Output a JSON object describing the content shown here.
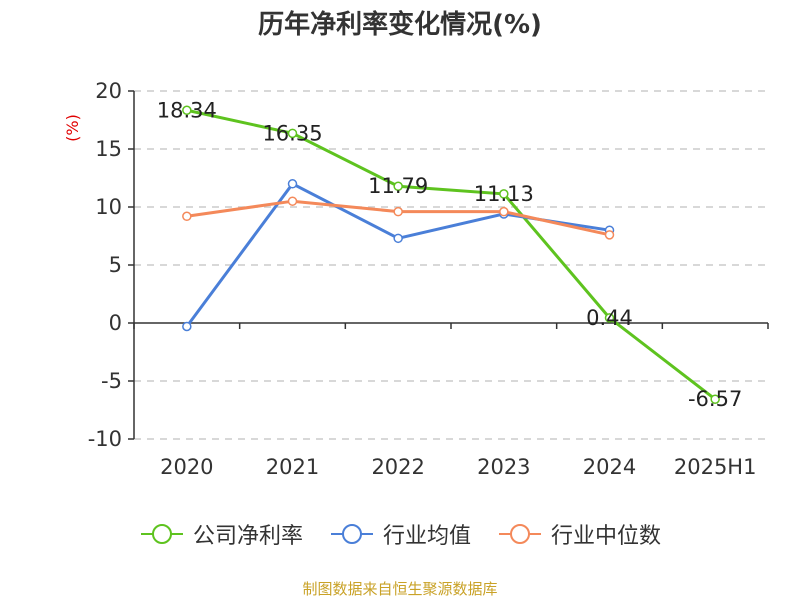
{
  "chart_data": {
    "type": "line",
    "title": "历年净利率变化情况(%)",
    "ylabel": "(%)",
    "categories": [
      "2020",
      "2021",
      "2022",
      "2023",
      "2024",
      "2025H1"
    ],
    "ylim": [
      -10,
      20
    ],
    "yticks": [
      "20",
      "15",
      "10",
      "5",
      "0",
      "-5",
      "-10"
    ],
    "grid": true,
    "legend_position": "bottom",
    "series": [
      {
        "name": "公司净利率",
        "color": "#5ec31f",
        "values": [
          18.34,
          16.35,
          11.79,
          11.13,
          0.44,
          -6.57
        ],
        "labels": [
          "18.34",
          "16.35",
          "11.79",
          "11.13",
          "0.44",
          "-6.57"
        ]
      },
      {
        "name": "行业均值",
        "color": "#4a7fd8",
        "values": [
          -0.3,
          12.0,
          7.3,
          9.4,
          8.0,
          null
        ]
      },
      {
        "name": "行业中位数",
        "color": "#f4895a",
        "values": [
          9.2,
          10.5,
          9.6,
          9.6,
          7.6,
          null
        ]
      }
    ]
  },
  "footer": "制图数据来自恒生聚源数据库"
}
